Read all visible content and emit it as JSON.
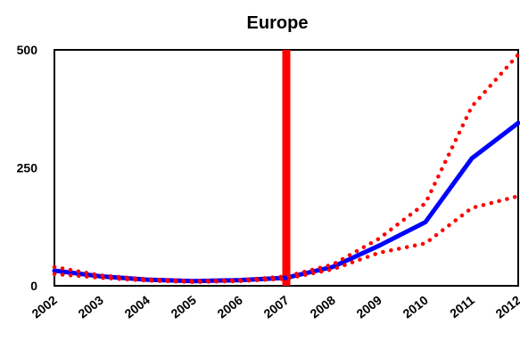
{
  "chart_data": {
    "type": "line",
    "title": "Europe",
    "xlabel": "",
    "ylabel": "",
    "x": [
      "2002",
      "2003",
      "2004",
      "2005",
      "2006",
      "2007",
      "2008",
      "2009",
      "2010",
      "2011",
      "2012"
    ],
    "xlim": [
      2002,
      2012
    ],
    "ylim": [
      0,
      500
    ],
    "yticks": [
      "0",
      "250",
      "500"
    ],
    "grid": false,
    "legend": "none",
    "series": [
      {
        "style": "solid",
        "color": "#0000ff",
        "values": [
          32,
          20,
          13,
          10,
          12,
          17,
          40,
          85,
          135,
          270,
          345
        ]
      },
      {
        "style": "dotted",
        "color": "#ff0000",
        "values": [
          40,
          22,
          14,
          10,
          12,
          20,
          45,
          100,
          175,
          380,
          490
        ]
      },
      {
        "style": "dotted",
        "color": "#ff0000",
        "values": [
          25,
          17,
          11,
          8,
          10,
          15,
          35,
          70,
          90,
          165,
          190
        ]
      }
    ],
    "vline": {
      "x": 2007,
      "color": "#ff0000"
    }
  }
}
